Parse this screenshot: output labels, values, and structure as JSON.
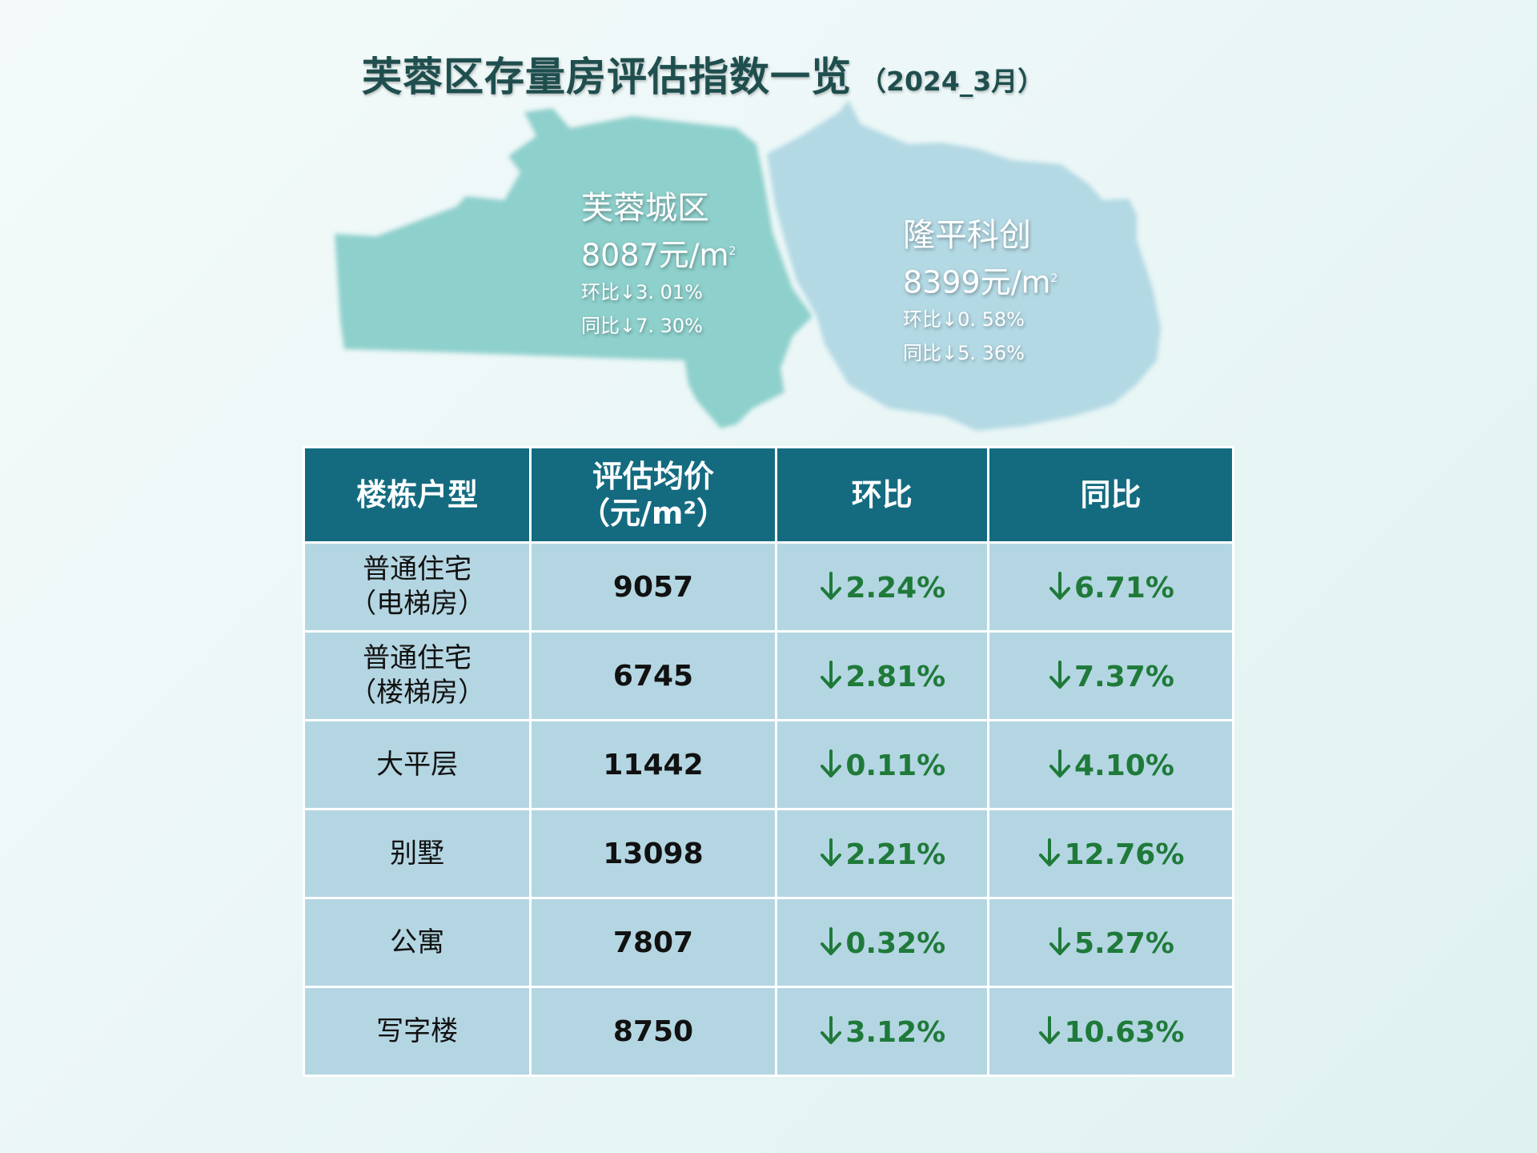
{
  "title": {
    "main": "芙蓉区存量房评估指数一览",
    "sub": "（2024_3月）"
  },
  "regions": [
    {
      "name": "芙蓉城区",
      "price": "8087元/m",
      "price_sup": "2",
      "mom": "环比↓3. 01%",
      "yoy": "同比↓7. 30%",
      "color": "#8ed0cc"
    },
    {
      "name": "隆平科创",
      "price": "8399元/m",
      "price_sup": "2",
      "mom": "环比↓0. 58%",
      "yoy": "同比↓5. 36%",
      "color": "#b3d9e4"
    }
  ],
  "table": {
    "headers": [
      "楼栋户型",
      "评估均价",
      "（元/m²）",
      "环比",
      "同比"
    ],
    "rows": [
      {
        "type_line1": "普通住宅",
        "type_line2": "（电梯房）",
        "price": "9057",
        "mom": "2.24%",
        "yoy": "6.71%"
      },
      {
        "type_line1": "普通住宅",
        "type_line2": "（楼梯房）",
        "price": "6745",
        "mom": "2.81%",
        "yoy": "7.37%"
      },
      {
        "type_line1": "大平层",
        "type_line2": "",
        "price": "11442",
        "mom": "0.11%",
        "yoy": "4.10%"
      },
      {
        "type_line1": "别墅",
        "type_line2": "",
        "price": "13098",
        "mom": "2.21%",
        "yoy": "12.76%"
      },
      {
        "type_line1": "公寓",
        "type_line2": "",
        "price": "7807",
        "mom": "0.32%",
        "yoy": "5.27%"
      },
      {
        "type_line1": "写字楼",
        "type_line2": "",
        "price": "8750",
        "mom": "3.12%",
        "yoy": "10.63%"
      }
    ],
    "colors": {
      "header_bg": "#146b80",
      "cell_bg": "#b4d6e2",
      "down_arrow": "#1f7a3a"
    }
  }
}
